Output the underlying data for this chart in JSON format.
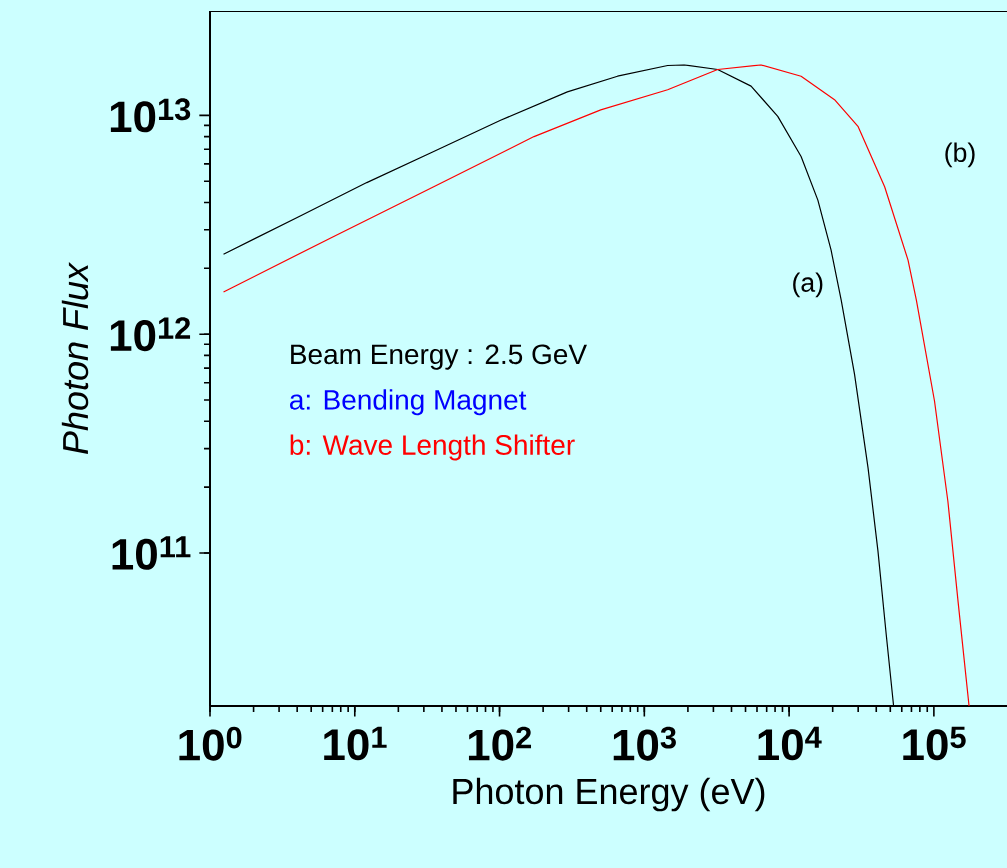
{
  "chart_data": {
    "type": "line",
    "xlabel": "Photon Energy (eV)",
    "ylabel": "*Photon Flux*",
    "log": "xy",
    "xlim": [
      1,
      320000
    ],
    "ylim": [
      20000000000,
      30000000000000
    ],
    "xticks": [
      {
        "value": 1,
        "label": "10$^{0}$"
      },
      {
        "value": 10,
        "label": "10$^{1}$"
      },
      {
        "value": 100,
        "label": "10$^{2}$"
      },
      {
        "value": 1000,
        "label": "10$^{3}$"
      },
      {
        "value": 10000,
        "label": "10$^{4}$"
      },
      {
        "value": 100000,
        "label": "10$^{5}$"
      }
    ],
    "yticks": [
      {
        "value": 100000000000,
        "label": "10$^{11}$"
      },
      {
        "value": 1000000000000,
        "label": "10$^{12}$"
      },
      {
        "value": 10000000000000,
        "label": "10$^{13}$"
      }
    ],
    "series": [
      {
        "color": "#000000",
        "x": [
          1.24,
          4.2,
          12.1,
          35.1,
          101.6,
          294,
          653,
          1449,
          1885,
          3210,
          5460,
          8350,
          12100,
          15800,
          19500,
          22900,
          28300,
          35100,
          41100,
          46900,
          52700
        ],
        "values": [
          2320000000000.0,
          3470000000000.0,
          4930000000000.0,
          6840000000000.0,
          9500000000000.0,
          12800000000000.0,
          15100000000000.0,
          16900000000000.0,
          17000000000000.0,
          16200000000000.0,
          13600000000000.0,
          9900000000000.0,
          6490000000000.0,
          4100000000000.0,
          2420000000000.0,
          1430000000000.0,
          657000000000.0,
          245000000000.0,
          102000000000.0,
          42200000000.0,
          20000000000.0
        ]
      },
      {
        "color": "#ff0000",
        "x": [
          1.24,
          7.1,
          35.1,
          173,
          500,
          1449,
          3210,
          6400,
          12100,
          20600,
          29900,
          45700,
          66300,
          75700,
          101000,
          125000,
          147000,
          175000
        ],
        "values": [
          1560000000000.0,
          2790000000000.0,
          4720000000000.0,
          8000000000000.0,
          10600000000000.0,
          13100000000000.0,
          16200000000000.0,
          17000000000000.0,
          15100000000000.0,
          11800000000000.0,
          8910000000000.0,
          4720000000000.0,
          2180000000000.0,
          1430000000000.0,
          495000000000.0,
          172000000000.0,
          59800000000.0,
          20000000000.0
        ]
      }
    ],
    "annotations": [
      "Beam Energy : 2.5 GeV",
      "a: Bending Magnet",
      "b: Wave Length Shifter",
      "(a)",
      "(b)"
    ]
  }
}
